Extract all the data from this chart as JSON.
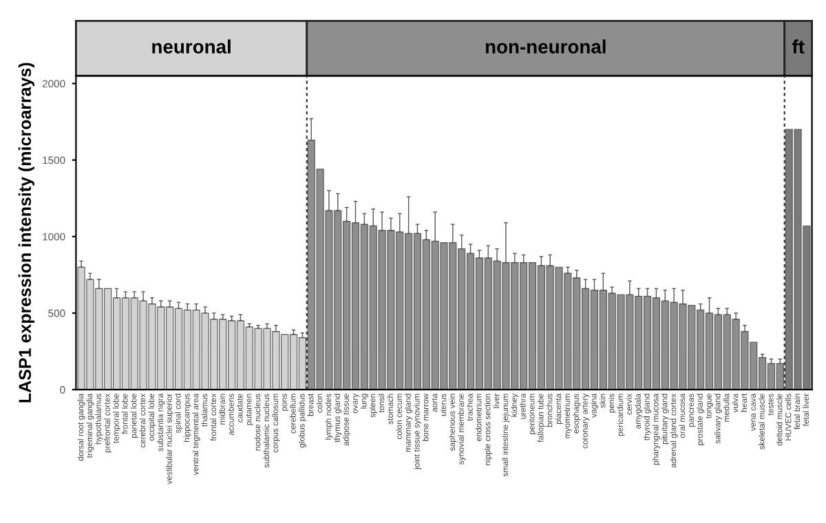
{
  "chart_data": {
    "type": "bar",
    "ylabel": "LASP1 expression intensity (microarrays)",
    "categories": [
      "dorsal root ganglia",
      "trigeminal ganglia",
      "hypothalamus",
      "prefrontal cortex",
      "temporal lobe",
      "frontal lobe",
      "parietal lobe",
      "cerebral cortex",
      "occipital lobe",
      "substantia nigra",
      "vestibular nuclei superior",
      "spinal cord",
      "hippocampus",
      "ventral tegmental area",
      "thalamus",
      "frontal cortex",
      "midbrain",
      "accumbens",
      "caudate",
      "putamen",
      "nodose nucleus",
      "subthalamic nucleus",
      "corpus callosum",
      "pons",
      "cerebellum",
      "globus pallidus",
      "breast",
      "colon",
      "lymph nodes",
      "thymus gland",
      "adipose tissue",
      "ovary",
      "lung",
      "spleen",
      "tonsil",
      "stomach",
      "colon cecum",
      "mammary gland",
      "joint tissue synovium",
      "bone marrow",
      "aorta",
      "uterus",
      "saphenous vein",
      "synovial membrane",
      "trachea",
      "endometrium",
      "nipple cross section",
      "liver",
      "small intestine jejunum",
      "kidney",
      "urethra",
      "peritoneum",
      "fallopian tube",
      "bronchus",
      "placenta",
      "myometrium",
      "esophagus",
      "coronary artery",
      "vagina",
      "skin",
      "penis",
      "pericardium",
      "cervix",
      "amygdala",
      "thyroid gland",
      "pharyngeal mucosa",
      "pituitary gland",
      "adrenal gland cortex",
      "oral mucosa",
      "pancreas",
      "prostate gland",
      "tongue",
      "salivary gland",
      "medulla",
      "vulva",
      "heart",
      "vena cava",
      "skeletal muscle",
      "testes",
      "deltoid muscle",
      "HUVEC cells",
      "fetal brain",
      "fetal liver"
    ],
    "series": [
      {
        "name": "neuronal",
        "color": "#d3d3d3",
        "values": [
          800,
          720,
          660,
          660,
          600,
          600,
          600,
          580,
          560,
          540,
          540,
          530,
          520,
          520,
          500,
          460,
          460,
          450,
          450,
          410,
          400,
          400,
          380,
          360,
          360,
          340,
          null,
          null,
          null,
          null,
          null,
          null,
          null,
          null,
          null,
          null,
          null,
          null,
          null,
          null,
          null,
          null,
          null,
          null,
          null,
          null,
          null,
          null,
          null,
          null,
          null,
          null,
          null,
          null,
          null,
          null,
          null,
          null,
          null,
          null,
          null,
          null,
          null,
          null,
          null,
          null,
          null,
          null,
          null,
          null,
          null,
          null,
          null,
          null,
          null,
          null,
          null,
          null,
          null,
          null,
          null,
          null,
          null
        ],
        "errors": [
          [
            800,
            840
          ],
          [
            720,
            760
          ],
          [
            660,
            720
          ],
          null,
          [
            600,
            660
          ],
          [
            600,
            640
          ],
          [
            600,
            640
          ],
          [
            580,
            640
          ],
          [
            560,
            600
          ],
          [
            540,
            580
          ],
          [
            540,
            580
          ],
          [
            530,
            570
          ],
          [
            520,
            560
          ],
          [
            520,
            560
          ],
          [
            500,
            540
          ],
          [
            460,
            500
          ],
          [
            460,
            490
          ],
          [
            450,
            480
          ],
          [
            450,
            490
          ],
          [
            410,
            430
          ],
          [
            400,
            420
          ],
          [
            400,
            430
          ],
          [
            380,
            420
          ],
          null,
          [
            360,
            390
          ],
          [
            340,
            370
          ],
          null,
          null,
          null,
          null,
          null,
          null,
          null,
          null,
          null,
          null,
          null,
          null,
          null,
          null,
          null,
          null,
          null,
          null,
          null,
          null,
          null,
          null,
          null,
          null,
          null,
          null,
          null,
          null,
          null,
          null,
          null,
          null,
          null,
          null,
          null,
          null,
          null,
          null,
          null,
          null,
          null,
          null,
          null,
          null,
          null,
          null,
          null,
          null,
          null,
          null,
          null,
          null,
          null,
          null,
          null,
          null,
          null
        ]
      },
      {
        "name": "non-neuronal",
        "color": "#8e8e8e",
        "values": [
          null,
          null,
          null,
          null,
          null,
          null,
          null,
          null,
          null,
          null,
          null,
          null,
          null,
          null,
          null,
          null,
          null,
          null,
          null,
          null,
          null,
          null,
          null,
          null,
          null,
          null,
          1630,
          1440,
          1170,
          1170,
          1100,
          1090,
          1080,
          1070,
          1040,
          1040,
          1030,
          1020,
          1020,
          980,
          970,
          960,
          960,
          920,
          890,
          860,
          860,
          840,
          830,
          830,
          830,
          830,
          810,
          810,
          800,
          760,
          730,
          660,
          650,
          650,
          630,
          620,
          620,
          610,
          610,
          600,
          580,
          570,
          560,
          550,
          520,
          500,
          490,
          490,
          460,
          380,
          310,
          210,
          170,
          170,
          null,
          null,
          null
        ],
        "errors": [
          null,
          null,
          null,
          null,
          null,
          null,
          null,
          null,
          null,
          null,
          null,
          null,
          null,
          null,
          null,
          null,
          null,
          null,
          null,
          null,
          null,
          null,
          null,
          null,
          null,
          null,
          [
            1630,
            1770
          ],
          null,
          [
            1170,
            1300
          ],
          [
            1170,
            1280
          ],
          [
            1100,
            1190
          ],
          [
            1090,
            1230
          ],
          [
            1080,
            1150
          ],
          [
            1070,
            1180
          ],
          [
            1040,
            1160
          ],
          [
            1040,
            1120
          ],
          [
            1030,
            1150
          ],
          [
            1020,
            1260
          ],
          [
            1020,
            1080
          ],
          [
            980,
            1040
          ],
          [
            970,
            1160
          ],
          null,
          [
            960,
            1080
          ],
          [
            920,
            1010
          ],
          [
            890,
            950
          ],
          [
            860,
            910
          ],
          [
            860,
            940
          ],
          [
            840,
            920
          ],
          [
            830,
            1090
          ],
          [
            830,
            890
          ],
          [
            830,
            880
          ],
          null,
          [
            810,
            870
          ],
          [
            810,
            880
          ],
          null,
          [
            760,
            800
          ],
          [
            730,
            780
          ],
          [
            660,
            720
          ],
          [
            650,
            720
          ],
          [
            650,
            760
          ],
          [
            630,
            670
          ],
          null,
          [
            620,
            710
          ],
          [
            610,
            660
          ],
          [
            610,
            660
          ],
          [
            600,
            660
          ],
          [
            580,
            650
          ],
          [
            570,
            660
          ],
          [
            560,
            650
          ],
          null,
          [
            520,
            560
          ],
          [
            500,
            600
          ],
          [
            490,
            530
          ],
          [
            490,
            530
          ],
          [
            460,
            500
          ],
          [
            380,
            420
          ],
          null,
          [
            210,
            230
          ],
          [
            170,
            200
          ],
          [
            170,
            200
          ],
          null,
          null,
          null
        ]
      },
      {
        "name": "ft",
        "color": "#7a7a7a",
        "values": [
          null,
          null,
          null,
          null,
          null,
          null,
          null,
          null,
          null,
          null,
          null,
          null,
          null,
          null,
          null,
          null,
          null,
          null,
          null,
          null,
          null,
          null,
          null,
          null,
          null,
          null,
          null,
          null,
          null,
          null,
          null,
          null,
          null,
          null,
          null,
          null,
          null,
          null,
          null,
          null,
          null,
          null,
          null,
          null,
          null,
          null,
          null,
          null,
          null,
          null,
          null,
          null,
          null,
          null,
          null,
          null,
          null,
          null,
          null,
          null,
          null,
          null,
          null,
          null,
          null,
          null,
          null,
          null,
          null,
          null,
          null,
          null,
          null,
          null,
          null,
          null,
          null,
          null,
          null,
          null,
          1700,
          1700,
          1070
        ]
      }
    ],
    "ylim": [
      0,
      2050
    ],
    "yticks": [
      0,
      500,
      1000,
      1500,
      2000
    ],
    "grid": false
  }
}
